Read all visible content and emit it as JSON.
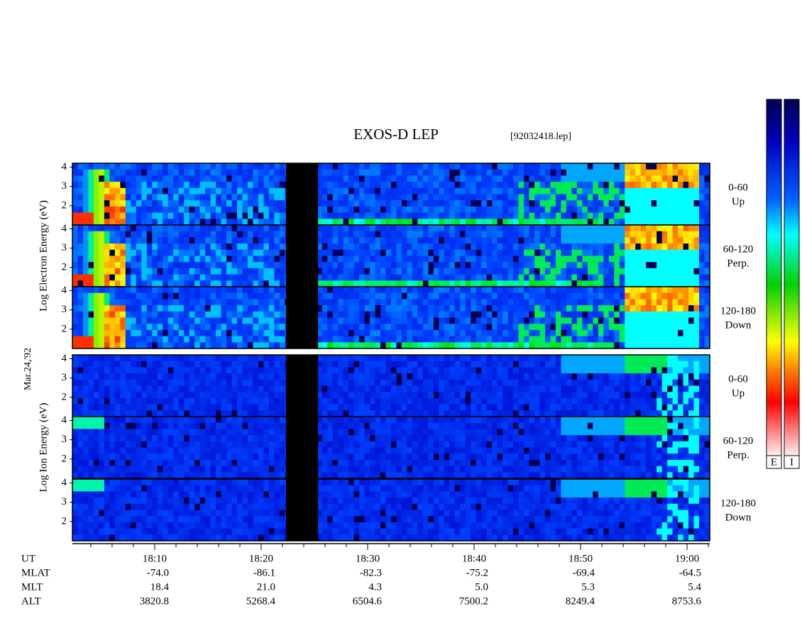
{
  "chart_data": {
    "type": "spectrogram",
    "title": "EXOS-D LEP",
    "subtitle": "[92032418.lep]",
    "date": "Mar.24,'92",
    "xlim": [
      2.27,
      62.13
    ],
    "xticks": [
      {
        "value": 10,
        "label": "18:10"
      },
      {
        "value": 20,
        "label": "18:20"
      },
      {
        "value": 30,
        "label": "18:30"
      },
      {
        "value": 40,
        "label": "18:40"
      },
      {
        "value": 50,
        "label": "18:50"
      },
      {
        "value": 60,
        "label": "19:00"
      }
    ],
    "xminorticks": [
      4,
      6,
      8,
      12,
      14,
      16,
      18,
      22,
      24,
      26,
      28,
      32,
      34,
      36,
      38,
      42,
      44,
      46,
      48,
      52,
      54,
      56,
      58,
      62
    ],
    "ylim": [
      1,
      4.2
    ],
    "yticks": [
      2,
      3,
      4
    ],
    "groups": [
      {
        "label": "Log Electron Energy (eV)",
        "panels": [
          {
            "angle": "0-60",
            "direction": "Up"
          },
          {
            "angle": "60-120",
            "direction": "Perp."
          },
          {
            "angle": "120-180",
            "direction": "Down"
          }
        ]
      },
      {
        "label": "Log Ion Energy (eV)",
        "panels": [
          {
            "angle": "0-60",
            "direction": "Up"
          },
          {
            "angle": "60-120",
            "direction": "Perp."
          },
          {
            "angle": "120-180",
            "direction": "Down"
          }
        ]
      }
    ],
    "colorbars": [
      "E",
      "I"
    ],
    "ephemeris": {
      "row_labels": [
        "UT",
        "MLAT",
        "MLT",
        "ALT"
      ],
      "rows": [
        [
          "-74.0",
          "-86.1",
          "-82.3",
          "-75.2",
          "-69.4",
          "-64.5"
        ],
        [
          "18.4",
          "21.0",
          "4.3",
          "5.0",
          "5.3",
          "5.4"
        ],
        [
          "3820.8",
          "5268.4",
          "6504.6",
          "7500.2",
          "8249.4",
          "8753.6"
        ]
      ]
    }
  }
}
